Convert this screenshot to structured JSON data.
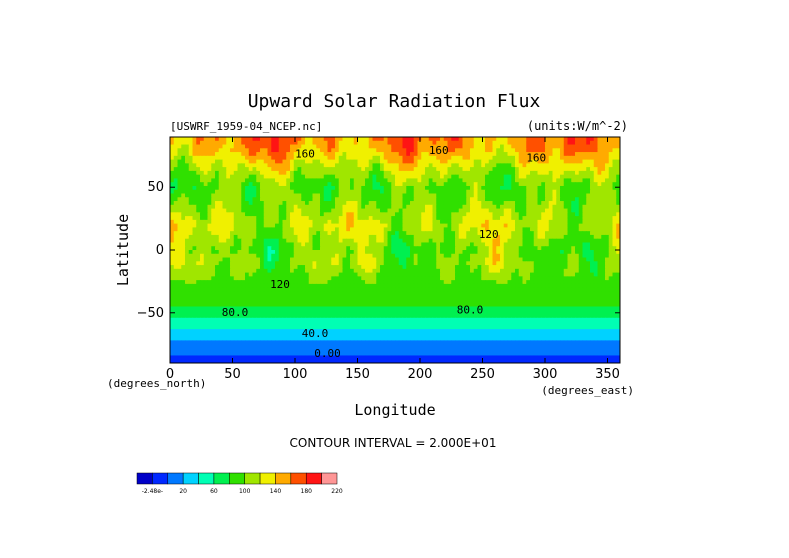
{
  "chart_data": {
    "type": "heatmap",
    "title": "Upward Solar Radiation Flux",
    "file_label": "[USWRF_1959-04_NCEP.nc]",
    "units_label": "(units:W/m^-2)",
    "xlabel": "Longitude",
    "ylabel": "Latitude",
    "x_unit_note": "(degrees_east)",
    "y_unit_note": "(degrees_north)",
    "xlim": [
      0,
      360
    ],
    "ylim": [
      -90,
      90
    ],
    "x_ticks": [
      0,
      50,
      100,
      150,
      200,
      250,
      300,
      350
    ],
    "y_ticks": [
      -50,
      0,
      50
    ],
    "contour_interval_text": "CONTOUR INTERVAL = 2.000E+01",
    "contour_labels": [
      {
        "text": "160",
        "lon": 108,
        "lat": 76
      },
      {
        "text": "160",
        "lon": 215,
        "lat": 79
      },
      {
        "text": "160",
        "lon": 293,
        "lat": 73
      },
      {
        "text": "80.0",
        "lon": 52,
        "lat": -50
      },
      {
        "text": "80.0",
        "lon": 240,
        "lat": -48
      },
      {
        "text": "40.0",
        "lon": 116,
        "lat": -67
      },
      {
        "text": "0.00",
        "lon": 126,
        "lat": -83
      },
      {
        "text": "120",
        "lon": 88,
        "lat": -28
      },
      {
        "text": "120",
        "lon": 255,
        "lat": 12
      }
    ],
    "zonal_profile": {
      "lat": [
        -90,
        -80,
        -70,
        -60,
        -50,
        -40,
        -30,
        -20,
        -10,
        0,
        10,
        20,
        30,
        40,
        50,
        60,
        70,
        80,
        90
      ],
      "values": [
        10,
        25,
        45,
        70,
        90,
        110,
        112,
        118,
        125,
        118,
        130,
        140,
        130,
        120,
        115,
        130,
        150,
        170,
        180
      ]
    },
    "colorbar": {
      "levels": [
        -2.48e-14,
        20,
        40,
        60,
        80,
        100,
        120,
        140,
        160,
        180,
        200,
        220
      ],
      "tick_labels": [
        "-2.48e-",
        "20",
        "60",
        "100",
        "140",
        "180",
        "220"
      ],
      "colors": [
        "#0000c8",
        "#0028ff",
        "#0078ff",
        "#00d2ff",
        "#00ffb4",
        "#00f050",
        "#30e000",
        "#a0e600",
        "#f0f000",
        "#ffaa00",
        "#ff5000",
        "#ff1414",
        "#ff9696"
      ]
    }
  }
}
